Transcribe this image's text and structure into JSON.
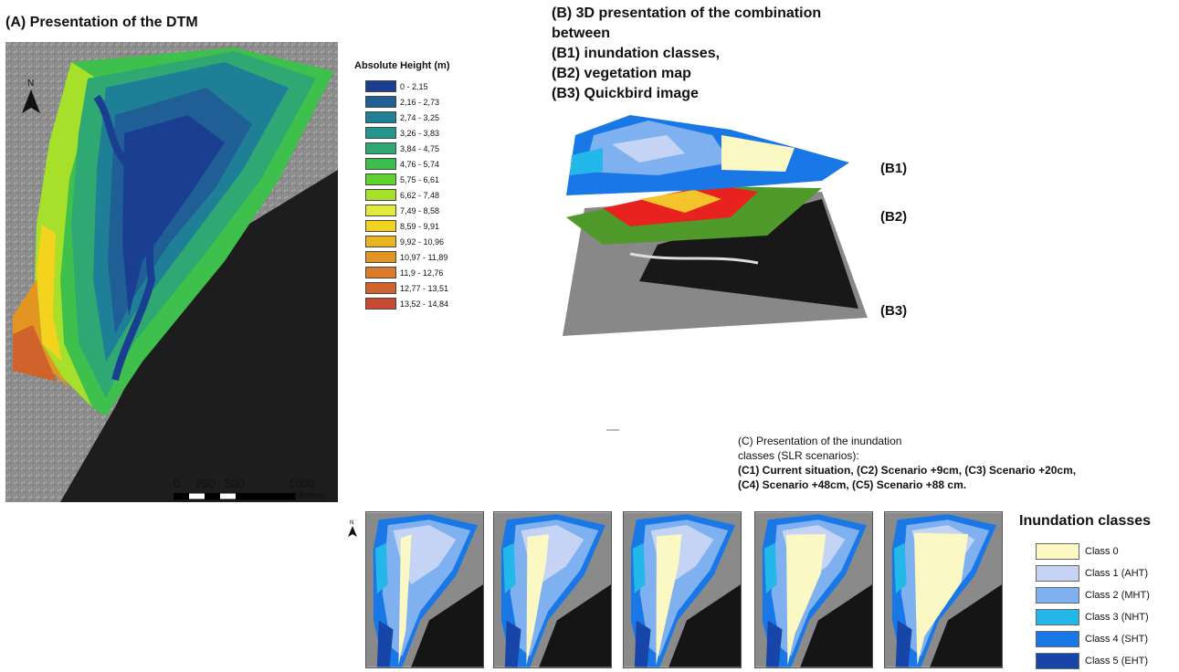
{
  "panel_a": {
    "title": "(A)  Presentation of the DTM",
    "north_label": "N"
  },
  "dtm_legend": {
    "title": "Absolute Height (m)",
    "classes": [
      {
        "label": "0 - 2,15",
        "color": "#1a3f91"
      },
      {
        "label": "2,16 - 2,73",
        "color": "#1f5f96"
      },
      {
        "label": "2,74 - 3,25",
        "color": "#1f7f96"
      },
      {
        "label": "3,26 - 3,83",
        "color": "#25968d"
      },
      {
        "label": "3,84 - 4,75",
        "color": "#2fa873"
      },
      {
        "label": "4,76 - 5,74",
        "color": "#3cbf4a"
      },
      {
        "label": "5,75 - 6,61",
        "color": "#5fd22b"
      },
      {
        "label": "6,62 - 7,48",
        "color": "#a6e02b"
      },
      {
        "label": "7,49 - 8,58",
        "color": "#e4ea3a"
      },
      {
        "label": "8,59 - 9,91",
        "color": "#f4d31f"
      },
      {
        "label": "9,92 - 10,96",
        "color": "#eab41e"
      },
      {
        "label": "10,97 - 11,89",
        "color": "#e39522"
      },
      {
        "label": "11,9 - 12,76",
        "color": "#db7a28"
      },
      {
        "label": "12,77 - 13,51",
        "color": "#d0622c"
      },
      {
        "label": "13,52 - 14,84",
        "color": "#c94a32"
      }
    ]
  },
  "scale_bar": {
    "ticks": [
      "0",
      "250",
      "500",
      "1000"
    ],
    "units": "Meters"
  },
  "panel_b": {
    "title_lines": [
      "(B) 3D presentation of the combination",
      "between",
      "(B1) inundation classes,",
      "(B2) vegetation map",
      "(B3) Quickbird image"
    ],
    "layer_labels": [
      "(B1)",
      "(B2)",
      "(B3)"
    ]
  },
  "panel_c": {
    "title_lines": [
      "(C) Presentation of the inundation",
      "classes (SLR scenarios):"
    ],
    "scenario_lines": [
      "(C1) Current situation, (C2) Scenario +9cm, (C3) Scenario +20cm,",
      "(C4) Scenario +48cm,  (C5) Scenario +88 cm."
    ],
    "north_label": "N"
  },
  "inundation_legend": {
    "title": "Inundation classes",
    "classes": [
      {
        "label": "Class 0",
        "color": "#fbf8c4"
      },
      {
        "label": "Class 1 (AHT)",
        "color": "#c5d4f4"
      },
      {
        "label": "Class 2 (MHT)",
        "color": "#7fb0ef"
      },
      {
        "label": "Class 3 (NHT)",
        "color": "#24b8ea"
      },
      {
        "label": "Class 4 (SHT)",
        "color": "#1a78e6"
      },
      {
        "label": "Class 5 (EHT)",
        "color": "#1846a8"
      }
    ]
  },
  "colors": {
    "imagery_gray": "#8a8a8a",
    "water_dark": "#141414",
    "vegetation_red": "#e8221e",
    "vegetation_green": "#4f9a2a"
  }
}
